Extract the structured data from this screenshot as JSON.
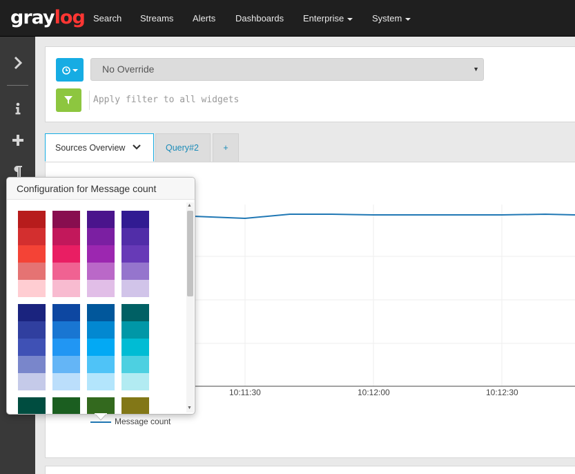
{
  "nav": {
    "logo_gray": "gray",
    "logo_log": "log",
    "items": [
      "Search",
      "Streams",
      "Alerts",
      "Dashboards",
      "Enterprise",
      "System"
    ]
  },
  "sidebar": {
    "icons": [
      "chevron-right-icon",
      "info-icon",
      "plus-icon",
      "paragraph-icon"
    ]
  },
  "querybar": {
    "time_icon": "clock-icon",
    "override_value": "No Override",
    "filter_icon": "filter-icon",
    "filter_placeholder": "Apply filter to all widgets"
  },
  "tabs": {
    "active": "Sources Overview",
    "second": "Query#2",
    "add": "+"
  },
  "chart": {
    "x_ticks": [
      "10:11:30",
      "10:12:00",
      "10:12:30"
    ],
    "legend": "Message count",
    "line_color": "#1f77b4"
  },
  "popover": {
    "title": "Configuration for Message count",
    "palette_groups": [
      [
        [
          "#b71c1c",
          "#d32f2f",
          "#f44336",
          "#e57373",
          "#ffcdd2"
        ],
        [
          "#880e4f",
          "#c2185b",
          "#e91e63",
          "#f06292",
          "#f8bbd0"
        ],
        [
          "#4a148c",
          "#7b1fa2",
          "#9c27b0",
          "#ba68c8",
          "#e1bee7"
        ],
        [
          "#311b92",
          "#512da8",
          "#673ab7",
          "#9575cd",
          "#d1c4e9"
        ]
      ],
      [
        [
          "#1a237e",
          "#303f9f",
          "#3f51b5",
          "#7986cb",
          "#c5cae9"
        ],
        [
          "#0d47a1",
          "#1976d2",
          "#2196f3",
          "#64b5f6",
          "#bbdefb"
        ],
        [
          "#01579b",
          "#0288d1",
          "#03a9f4",
          "#4fc3f7",
          "#b3e5fc"
        ],
        [
          "#006064",
          "#0097a7",
          "#00bcd4",
          "#4dd0e1",
          "#b2ebf2"
        ]
      ],
      [
        [
          "#004d40",
          "#00796b",
          "#009688",
          "#4db6ac",
          "#b2dfdb"
        ],
        [
          "#1b5e20",
          "#388e3c",
          "#4caf50",
          "#81c784",
          "#c8e6c9"
        ],
        [
          "#33691e",
          "#689f38",
          "#8bc34a",
          "#aed581",
          "#dcedc8"
        ],
        [
          "#827717",
          "#afb42b",
          "#cddc39",
          "#dce775",
          "#f0f4c3"
        ]
      ]
    ]
  },
  "colors": {
    "nav_bg": "#1f1f1f",
    "sidebar_bg": "#393939",
    "accent_blue": "#16ace3",
    "filter_green": "#8dc63f",
    "logo_red": "#ff3633"
  }
}
